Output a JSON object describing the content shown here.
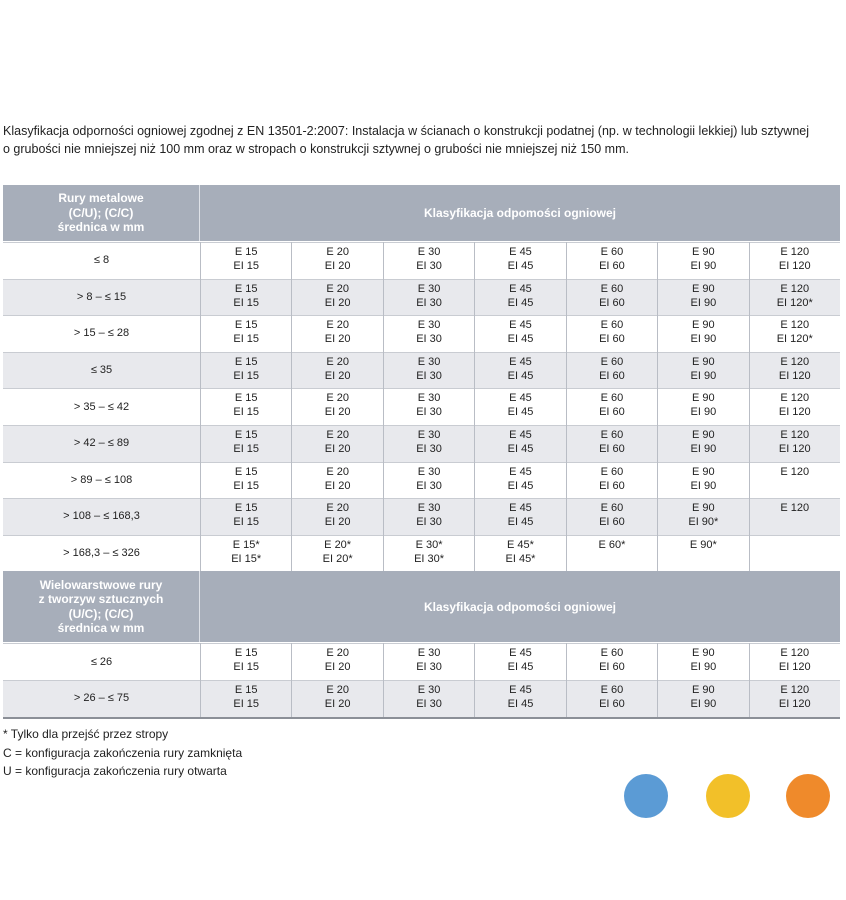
{
  "intro": [
    "Klasyfikacja odporności ogniowej zgodnej z EN 13501-2:2007: Instalacja w ścianach o konstrukcji podatnej (np. w technologii lekkiej) lub sztywnej",
    "o grubości nie mniejszej niż 100 mm oraz w stropach o konstrukcji sztywnej o grubości nie mniejszej niż 150 mm."
  ],
  "sections": [
    {
      "label": [
        "Rury metalowe",
        "(C/U); (C/C)",
        "średnica w mm"
      ],
      "title": "Klasyfikacja odpomości ogniowej",
      "rows": [
        {
          "label": "≤ 8",
          "cells": [
            [
              "E 15",
              "EI 15"
            ],
            [
              "E 20",
              "EI 20"
            ],
            [
              "E 30",
              "EI 30"
            ],
            [
              "E 45",
              "EI 45"
            ],
            [
              "E 60",
              "EI 60"
            ],
            [
              "E 90",
              "EI 90"
            ],
            [
              "E 120",
              "EI 120"
            ]
          ]
        },
        {
          "label": "> 8 – ≤ 15",
          "cells": [
            [
              "E 15",
              "EI 15"
            ],
            [
              "E 20",
              "EI 20"
            ],
            [
              "E 30",
              "EI 30"
            ],
            [
              "E 45",
              "EI 45"
            ],
            [
              "E 60",
              "EI 60"
            ],
            [
              "E 90",
              "EI 90"
            ],
            [
              "E 120",
              "EI 120*"
            ]
          ]
        },
        {
          "label": "> 15 – ≤ 28",
          "cells": [
            [
              "E 15",
              "EI 15"
            ],
            [
              "E 20",
              "EI 20"
            ],
            [
              "E 30",
              "EI 30"
            ],
            [
              "E 45",
              "EI 45"
            ],
            [
              "E 60",
              "EI 60"
            ],
            [
              "E 90",
              "EI 90"
            ],
            [
              "E 120",
              "EI 120*"
            ]
          ]
        },
        {
          "label": "≤ 35",
          "cells": [
            [
              "E 15",
              "EI 15"
            ],
            [
              "E 20",
              "EI 20"
            ],
            [
              "E 30",
              "EI 30"
            ],
            [
              "E 45",
              "EI 45"
            ],
            [
              "E 60",
              "EI 60"
            ],
            [
              "E 90",
              "EI 90"
            ],
            [
              "E 120",
              "EI 120"
            ]
          ]
        },
        {
          "label": "> 35 – ≤ 42",
          "cells": [
            [
              "E 15",
              "EI 15"
            ],
            [
              "E 20",
              "EI 20"
            ],
            [
              "E 30",
              "EI 30"
            ],
            [
              "E 45",
              "EI 45"
            ],
            [
              "E 60",
              "EI 60"
            ],
            [
              "E 90",
              "EI 90"
            ],
            [
              "E 120",
              "EI 120"
            ]
          ]
        },
        {
          "label": "> 42 – ≤ 89",
          "cells": [
            [
              "E 15",
              "EI 15"
            ],
            [
              "E 20",
              "EI 20"
            ],
            [
              "E 30",
              "EI 30"
            ],
            [
              "E 45",
              "EI 45"
            ],
            [
              "E 60",
              "EI 60"
            ],
            [
              "E 90",
              "EI 90"
            ],
            [
              "E 120",
              "EI 120"
            ]
          ]
        },
        {
          "label": "> 89 – ≤ 108",
          "cells": [
            [
              "E 15",
              "EI 15"
            ],
            [
              "E 20",
              "EI 20"
            ],
            [
              "E 30",
              "EI 30"
            ],
            [
              "E 45",
              "EI 45"
            ],
            [
              "E 60",
              "EI 60"
            ],
            [
              "E 90",
              "EI 90"
            ],
            [
              "E 120"
            ]
          ]
        },
        {
          "label": "> 108 – ≤ 168,3",
          "cells": [
            [
              "E 15",
              "EI 15"
            ],
            [
              "E 20",
              "EI 20"
            ],
            [
              "E 30",
              "EI 30"
            ],
            [
              "E 45",
              "EI 45"
            ],
            [
              "E 60",
              "EI 60"
            ],
            [
              "E 90",
              "EI 90*"
            ],
            [
              "E 120"
            ]
          ]
        },
        {
          "label": "> 168,3 – ≤ 326",
          "cells": [
            [
              "E 15*",
              "EI 15*"
            ],
            [
              "E 20*",
              "EI 20*"
            ],
            [
              "E 30*",
              "EI 30*"
            ],
            [
              "E 45*",
              "EI 45*"
            ],
            [
              "E 60*"
            ],
            [
              "E 90*"
            ]
          ]
        }
      ]
    },
    {
      "label": [
        "Wielowarstwowe rury",
        "z tworzyw sztucznych",
        "(U/C); (C/C)",
        "średnica w mm"
      ],
      "title": "Klasyfikacja odpomości ogniowej",
      "rows": [
        {
          "label": "≤ 26",
          "cells": [
            [
              "E 15",
              "EI 15"
            ],
            [
              "E 20",
              "EI 20"
            ],
            [
              "E 30",
              "EI 30"
            ],
            [
              "E 45",
              "EI 45"
            ],
            [
              "E 60",
              "EI 60"
            ],
            [
              "E 90",
              "EI 90"
            ],
            [
              "E 120",
              "EI 120"
            ]
          ]
        },
        {
          "label": "> 26 – ≤ 75",
          "cells": [
            [
              "E 15",
              "EI 15"
            ],
            [
              "E 20",
              "EI 20"
            ],
            [
              "E 30",
              "EI 30"
            ],
            [
              "E 45",
              "EI 45"
            ],
            [
              "E 60",
              "EI 60"
            ],
            [
              "E 90",
              "EI 90"
            ],
            [
              "E 120",
              "EI 120"
            ]
          ]
        }
      ]
    }
  ],
  "notes": [
    "* Tylko dla przejść przez stropy",
    "C = konfiguracja zakończenia rury zamknięta",
    "U = konfiguracja zakończenia rury otwarta"
  ]
}
